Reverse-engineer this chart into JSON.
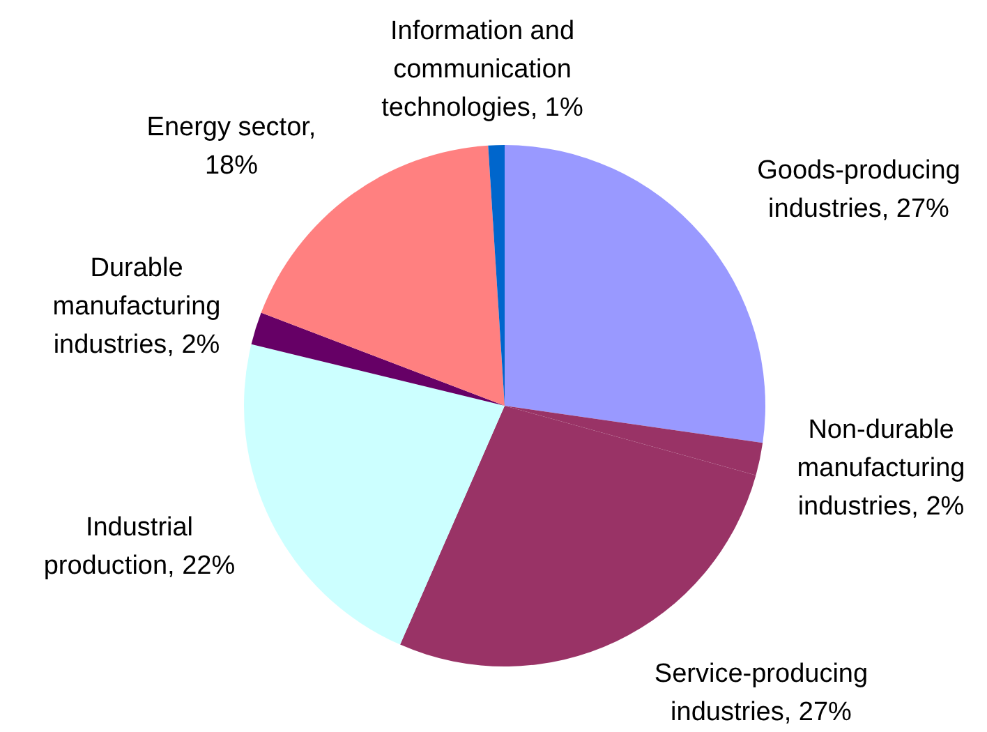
{
  "chart_data": {
    "type": "pie",
    "categories": [
      "Goods-producing industries, 27%",
      "Non-durable manufacturing industries, 2%",
      "Service-producing industries, 27%",
      "Industrial production, 22%",
      "Durable manufacturing industries, 2%",
      "Energy sector, 18%",
      "Information and communication technologies, 1%"
    ],
    "values": [
      27,
      2,
      27,
      22,
      2,
      18,
      1
    ],
    "colors": [
      "#9999ff",
      "#993366",
      "#993366",
      "#ccffff",
      "#660066",
      "#ff8080",
      "#0066cc"
    ]
  }
}
